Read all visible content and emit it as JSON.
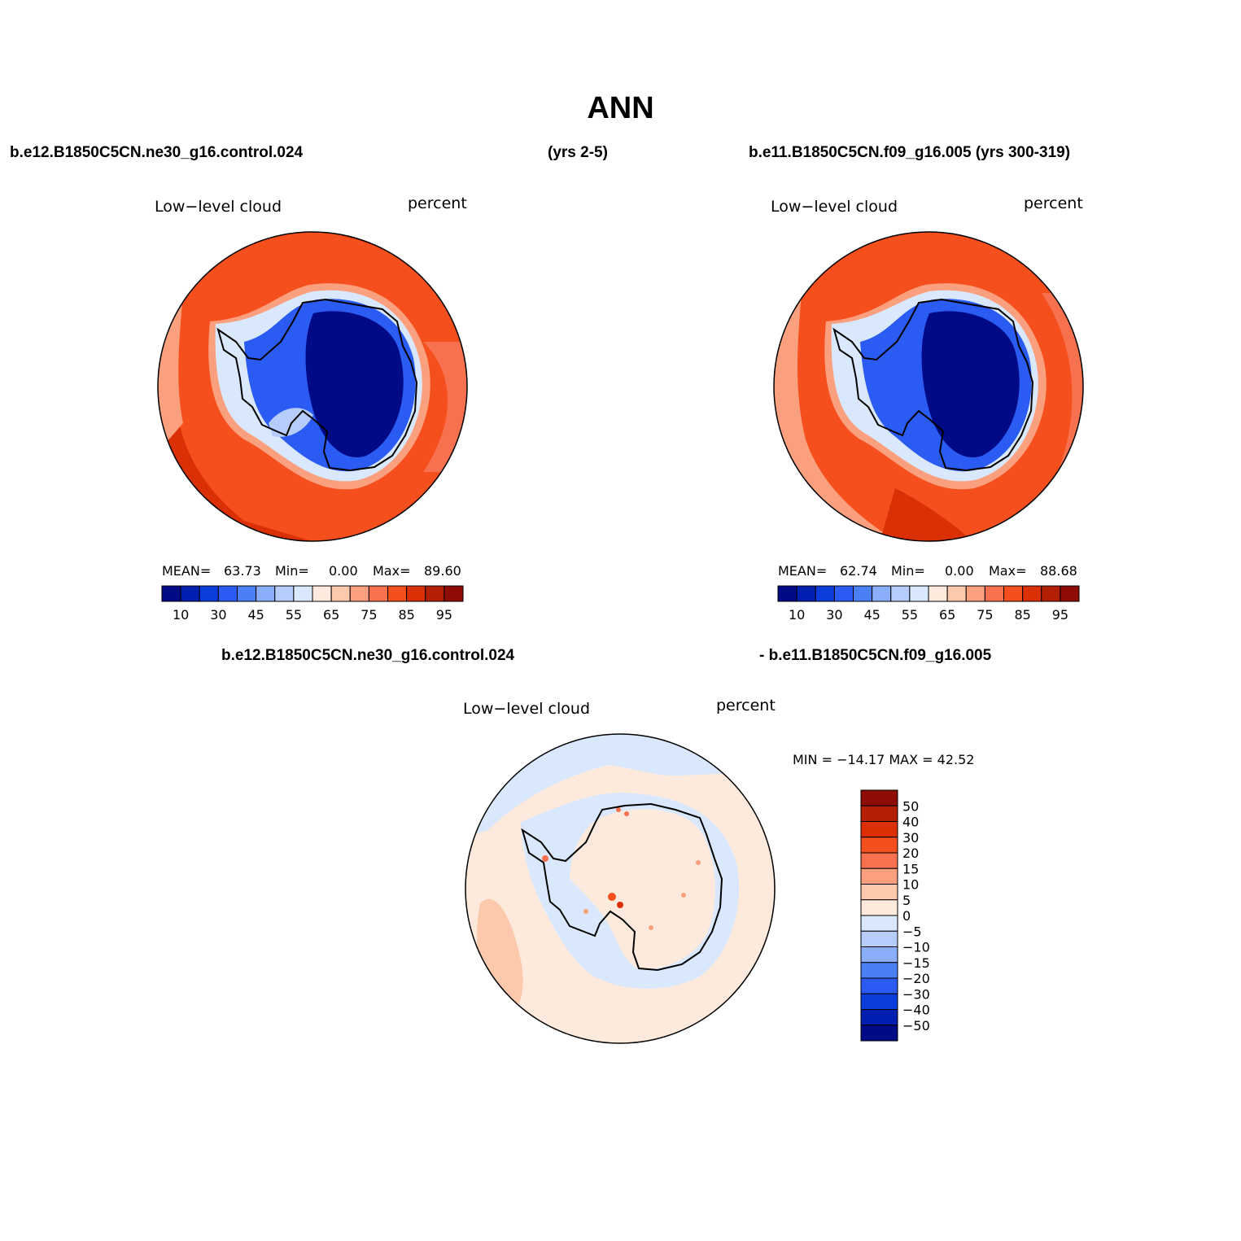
{
  "title": "ANN",
  "headers": {
    "top_left": "b.e12.B1850C5CN.ne30_g16.control.024",
    "top_mid": "(yrs 2-5)",
    "top_right": "b.e11.B1850C5CN.f09_g16.005 (yrs 300-319)",
    "bottom_left": "b.e12.B1850C5CN.ne30_g16.control.024",
    "bottom_right": "- b.e11.B1850C5CN.f09_g16.005"
  },
  "panels": [
    {
      "variable": "Low−level  cloud",
      "units": "percent",
      "mean_label": "MEAN=",
      "mean": "63.73",
      "min_label": "Min=",
      "min": "0.00",
      "max_label": "Max=",
      "max": "89.60"
    },
    {
      "variable": "Low−level  cloud",
      "units": "percent",
      "mean_label": "MEAN=",
      "mean": "62.74",
      "min_label": "Min=",
      "min": "0.00",
      "max_label": "Max=",
      "max": "88.68"
    },
    {
      "variable": "Low−level  cloud",
      "units": "percent",
      "minmax_text": "MIN = −14.17 MAX =  42.52"
    }
  ],
  "colorbar_abs": {
    "colors": [
      "#000a87",
      "#001fb1",
      "#0a3ddc",
      "#2a5bf2",
      "#4b80f5",
      "#8aaef9",
      "#b6cdfb",
      "#d9e8fd",
      "#feeadc",
      "#fcc9ad",
      "#fba07e",
      "#f8714e",
      "#f44f1c",
      "#db3005",
      "#b21f03",
      "#8d0c04"
    ],
    "tick_labels": [
      "10",
      "30",
      "45",
      "55",
      "65",
      "75",
      "85",
      "95"
    ]
  },
  "colorbar_diff": {
    "colors": [
      "#8d0c04",
      "#b21f03",
      "#db3005",
      "#f44f1c",
      "#f8714e",
      "#fba07e",
      "#fcc9ad",
      "#feeadc",
      "#d9e8fd",
      "#b6cdfb",
      "#8aaef9",
      "#4b80f5",
      "#2a5bf2",
      "#0a3ddc",
      "#001fb1",
      "#000a87"
    ],
    "tick_labels": [
      "50",
      "40",
      "30",
      "20",
      "15",
      "10",
      "5",
      "0",
      "−5",
      "−10",
      "−15",
      "−20",
      "−30",
      "−40",
      "−50"
    ]
  }
}
